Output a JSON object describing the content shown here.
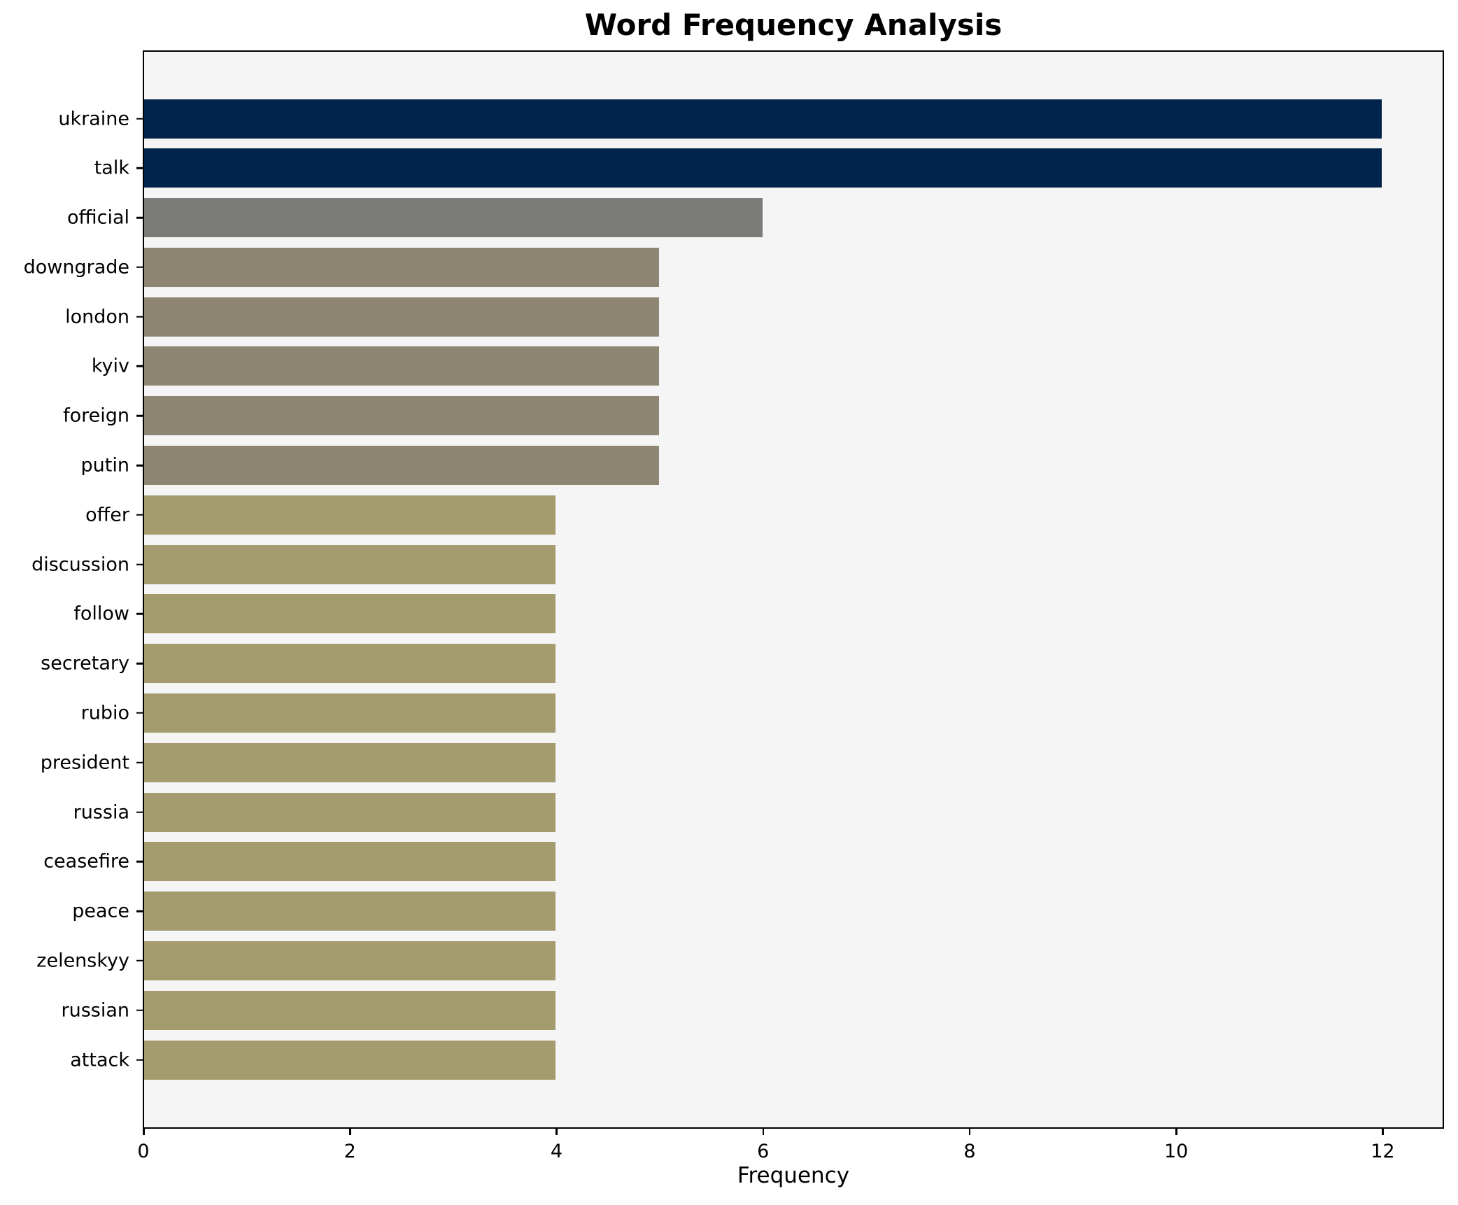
{
  "chart_data": {
    "type": "bar",
    "orientation": "horizontal",
    "title": "Word Frequency Analysis",
    "xlabel": "Frequency",
    "ylabel": "",
    "categories": [
      "ukraine",
      "talk",
      "official",
      "downgrade",
      "london",
      "kyiv",
      "foreign",
      "putin",
      "offer",
      "discussion",
      "follow",
      "secretary",
      "rubio",
      "president",
      "russia",
      "ceasefire",
      "peace",
      "zelenskyy",
      "russian",
      "attack"
    ],
    "values": [
      12,
      12,
      6,
      5,
      5,
      5,
      5,
      5,
      4,
      4,
      4,
      4,
      4,
      4,
      4,
      4,
      4,
      4,
      4,
      4
    ],
    "bar_colors": [
      "#02234B",
      "#02234B",
      "#7B7B77",
      "#8E8672",
      "#8E8672",
      "#8E8672",
      "#8E8672",
      "#8E8672",
      "#A49C6E",
      "#A49C6E",
      "#A49C6E",
      "#A49C6E",
      "#A49C6E",
      "#A49C6E",
      "#A49C6E",
      "#A49C6E",
      "#A49C6E",
      "#A49C6E",
      "#A49C6E",
      "#A49C6E"
    ],
    "x_ticks": [
      0,
      2,
      4,
      6,
      8,
      10,
      12
    ],
    "xlim": [
      0,
      12.6
    ],
    "grid": false,
    "legend": false,
    "colors": {
      "plot_background": "#F5F5F6",
      "figure_background": "#FFFFFF",
      "axis": "#000000",
      "text": "#000000"
    }
  }
}
